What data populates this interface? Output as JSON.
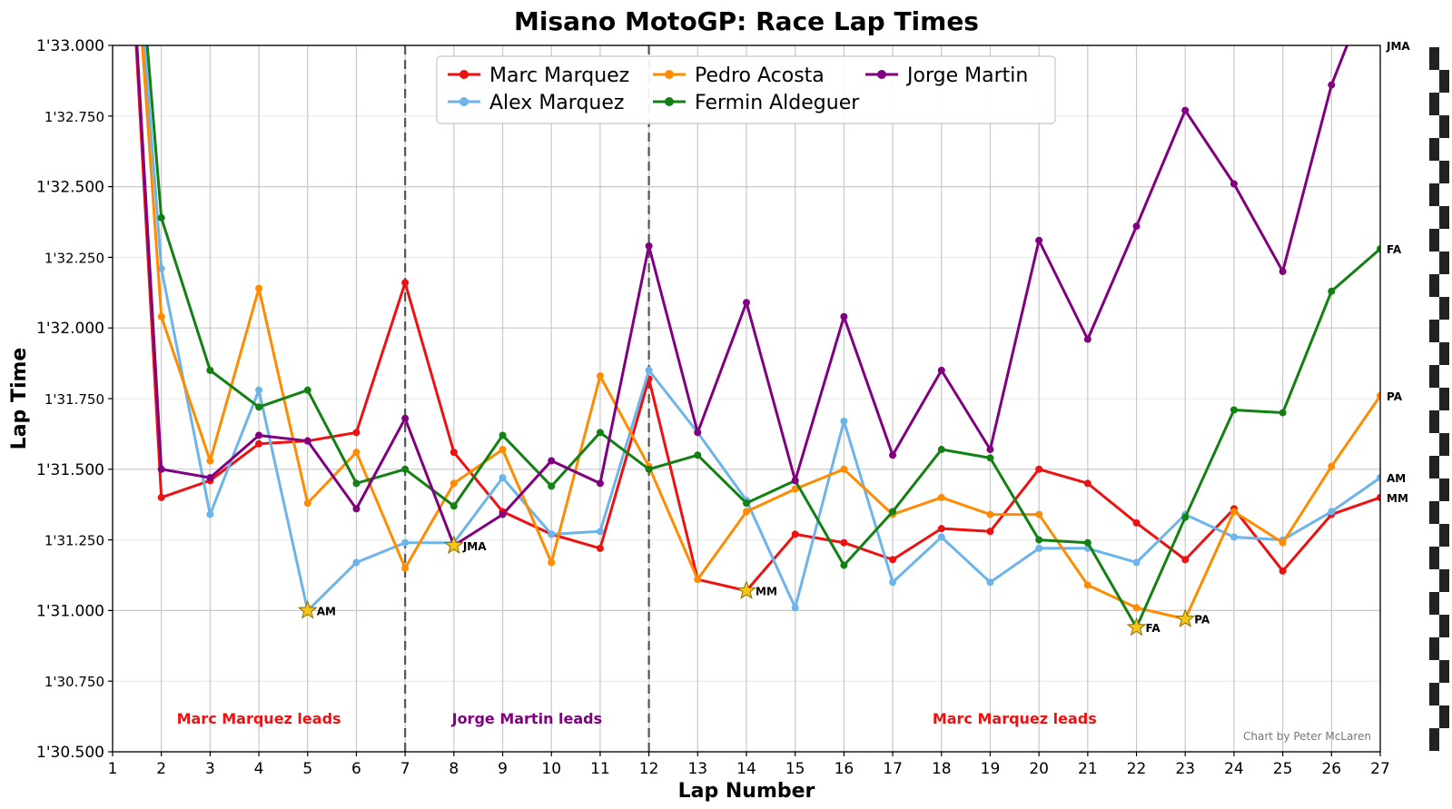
{
  "chart_data": {
    "type": "line",
    "title": "Misano MotoGP: Race Lap Times",
    "xlabel": "Lap Number",
    "ylabel": "Lap Time",
    "xlim": [
      1,
      27
    ],
    "ylim": [
      90.5,
      93.0
    ],
    "x_ticks": [
      1,
      2,
      3,
      4,
      5,
      6,
      7,
      8,
      9,
      10,
      11,
      12,
      13,
      14,
      15,
      16,
      17,
      18,
      19,
      20,
      21,
      22,
      23,
      24,
      25,
      26,
      27
    ],
    "y_ticks": [
      {
        "value": 90.5,
        "label": "1'30.500",
        "major": true
      },
      {
        "value": 90.75,
        "label": "1'30.750",
        "major": false
      },
      {
        "value": 91.0,
        "label": "1'31.000",
        "major": true
      },
      {
        "value": 91.25,
        "label": "1'31.250",
        "major": false
      },
      {
        "value": 91.5,
        "label": "1'31.500",
        "major": true
      },
      {
        "value": 91.75,
        "label": "1'31.750",
        "major": false
      },
      {
        "value": 92.0,
        "label": "1'32.000",
        "major": true
      },
      {
        "value": 92.25,
        "label": "1'32.250",
        "major": false
      },
      {
        "value": 92.5,
        "label": "1'32.500",
        "major": true
      },
      {
        "value": 92.75,
        "label": "1'32.750",
        "major": false
      },
      {
        "value": 93.0,
        "label": "1'33.000",
        "major": true
      }
    ],
    "grid": true,
    "legend_position": "top-center",
    "leader_changes": [
      7,
      12
    ],
    "leader_labels": [
      {
        "text": "Marc Marquez leads",
        "x": 4,
        "color": "#ee1111"
      },
      {
        "text": "Jorge Martin leads",
        "x": 9.5,
        "color": "#800080"
      },
      {
        "text": "Marc Marquez leads",
        "x": 19.5,
        "color": "#ee1111"
      }
    ],
    "credit": "Chart by Peter McLaren",
    "series": [
      {
        "name": "Marc Marquez",
        "abbr": "MM",
        "color": "#ee1111",
        "x": [
          1,
          2,
          3,
          4,
          5,
          6,
          7,
          8,
          9,
          10,
          11,
          12,
          13,
          14,
          15,
          16,
          17,
          18,
          19,
          20,
          21,
          22,
          23,
          24,
          25,
          26,
          27
        ],
        "values": [
          94.5,
          91.4,
          91.46,
          91.59,
          91.6,
          91.63,
          92.16,
          91.56,
          91.35,
          91.27,
          91.22,
          91.82,
          91.11,
          91.07,
          91.27,
          91.24,
          91.18,
          91.29,
          91.28,
          91.5,
          91.45,
          91.31,
          91.18,
          91.36,
          91.14,
          91.34,
          91.4
        ],
        "best_lap": 14
      },
      {
        "name": "Alex Marquez",
        "abbr": "AM",
        "color": "#6cb4ea",
        "x": [
          1,
          2,
          3,
          4,
          5,
          6,
          7,
          8,
          9,
          10,
          11,
          12,
          13,
          14,
          15,
          16,
          17,
          18,
          19,
          20,
          21,
          22,
          23,
          24,
          25,
          26,
          27
        ],
        "values": [
          94.5,
          92.21,
          91.34,
          91.78,
          91.0,
          91.17,
          91.24,
          91.24,
          91.47,
          91.27,
          91.28,
          91.85,
          91.63,
          91.39,
          91.01,
          91.67,
          91.1,
          91.26,
          91.1,
          91.22,
          91.22,
          91.17,
          91.34,
          91.26,
          91.25,
          91.35,
          91.47
        ],
        "best_lap": 5
      },
      {
        "name": "Pedro Acosta",
        "abbr": "PA",
        "color": "#ff8c00",
        "x": [
          1,
          2,
          3,
          4,
          5,
          6,
          7,
          8,
          9,
          10,
          11,
          12,
          13,
          14,
          15,
          16,
          17,
          18,
          19,
          20,
          21,
          22,
          23,
          24,
          25,
          26,
          27
        ],
        "values": [
          94.5,
          92.04,
          91.53,
          92.14,
          91.38,
          91.56,
          91.15,
          91.45,
          91.57,
          91.17,
          91.83,
          91.51,
          91.11,
          91.35,
          91.43,
          91.5,
          91.34,
          91.4,
          91.34,
          91.34,
          91.09,
          91.01,
          90.97,
          91.35,
          91.24,
          91.51,
          91.76
        ],
        "best_lap": 23
      },
      {
        "name": "Fermin Aldeguer",
        "abbr": "FA",
        "color": "#138013",
        "x": [
          1,
          2,
          3,
          4,
          5,
          6,
          7,
          8,
          9,
          10,
          11,
          12,
          13,
          14,
          15,
          16,
          17,
          18,
          19,
          20,
          21,
          22,
          23,
          24,
          25,
          26,
          27
        ],
        "values": [
          94.5,
          92.39,
          91.85,
          91.72,
          91.78,
          91.45,
          91.5,
          91.37,
          91.62,
          91.44,
          91.63,
          91.5,
          91.55,
          91.38,
          91.46,
          91.16,
          91.35,
          91.57,
          91.54,
          91.25,
          91.24,
          90.94,
          91.33,
          91.71,
          91.7,
          92.13,
          92.28
        ],
        "best_lap": 22
      },
      {
        "name": "Jorge Martin",
        "abbr": "JMA",
        "color": "#800080",
        "x": [
          1,
          2,
          3,
          4,
          5,
          6,
          7,
          8,
          9,
          10,
          11,
          12,
          13,
          14,
          15,
          16,
          17,
          18,
          19,
          20,
          21,
          22,
          23,
          24,
          25,
          26,
          27
        ],
        "values": [
          94.5,
          91.5,
          91.47,
          91.62,
          91.6,
          91.36,
          91.68,
          91.23,
          91.34,
          91.53,
          91.45,
          92.29,
          91.63,
          92.09,
          91.46,
          92.04,
          91.55,
          91.85,
          91.57,
          92.31,
          91.96,
          92.36,
          92.77,
          92.51,
          92.2,
          92.86,
          93.3
        ],
        "best_lap": 8
      }
    ]
  }
}
